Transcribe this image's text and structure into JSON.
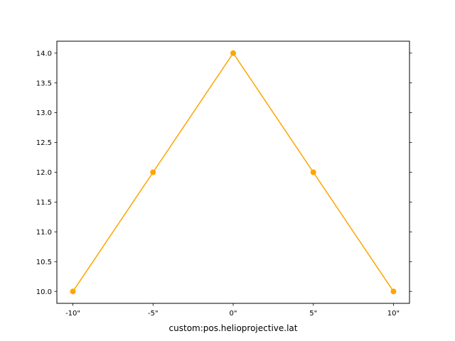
{
  "chart_data": {
    "type": "line",
    "title": "",
    "xlabel": "custom:pos.helioprojective.lat",
    "ylabel": "",
    "x_ticks": [
      {
        "value": -10,
        "label": "-10\""
      },
      {
        "value": -5,
        "label": "-5\""
      },
      {
        "value": 0,
        "label": "0\""
      },
      {
        "value": 5,
        "label": "5\""
      },
      {
        "value": 10,
        "label": "10\""
      }
    ],
    "y_ticks": [
      {
        "value": 10.0,
        "label": "10.0"
      },
      {
        "value": 10.5,
        "label": "10.5"
      },
      {
        "value": 11.0,
        "label": "11.0"
      },
      {
        "value": 11.5,
        "label": "11.5"
      },
      {
        "value": 12.0,
        "label": "12.0"
      },
      {
        "value": 12.5,
        "label": "12.5"
      },
      {
        "value": 13.0,
        "label": "13.0"
      },
      {
        "value": 13.5,
        "label": "13.5"
      },
      {
        "value": 14.0,
        "label": "14.0"
      }
    ],
    "xlim": [
      -11,
      11
    ],
    "ylim": [
      9.8,
      14.2
    ],
    "grid": false,
    "series": [
      {
        "color": "#ffa500",
        "marker": "circle",
        "x": [
          -10,
          -5,
          0,
          5,
          10
        ],
        "y": [
          10,
          12,
          14,
          12,
          10
        ]
      }
    ]
  }
}
